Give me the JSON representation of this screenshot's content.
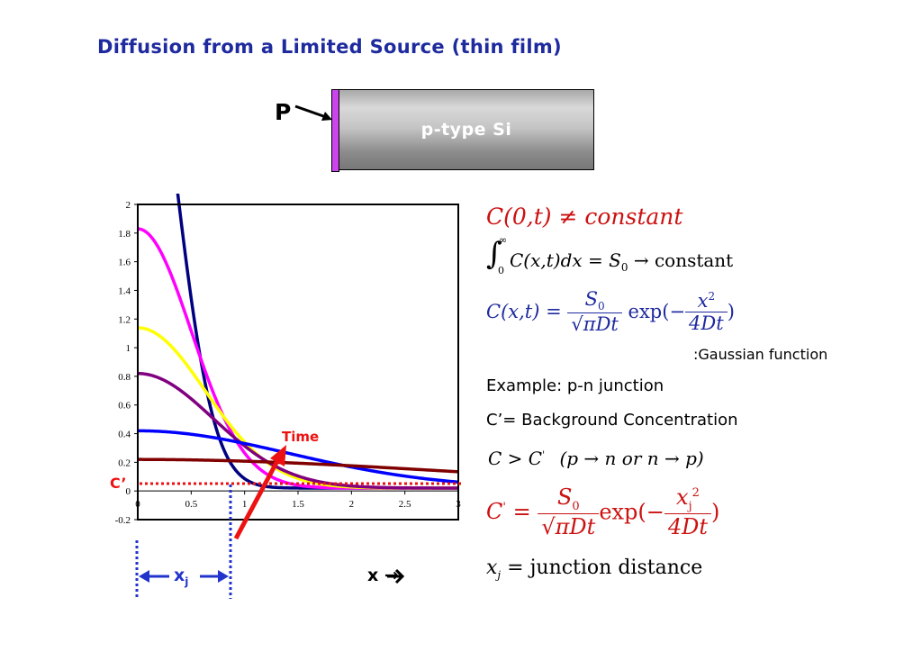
{
  "title": "Diffusion from a Limited Source (thin film)",
  "schematic": {
    "dopant_label": "P",
    "substrate_label": "p-type Si",
    "film_color": "#cc44ee"
  },
  "equations": {
    "eq1": "C(0,t) ≠ constant",
    "eq2_lower": "0",
    "eq2_upper": "∞",
    "eq2_body": "C(x,t)dx = S",
    "eq2_sub": "0",
    "eq2_tail": " → constant",
    "eq3_lhs": "C(x,t) =",
    "eq3_num": "S",
    "eq3_num_sub": "0",
    "eq3_den": "πDt",
    "eq3_exp": "exp(−",
    "eq3_exp_num": "x",
    "eq3_exp_num_sup": "2",
    "eq3_exp_den": "4Dt",
    "eq3_close": ")",
    "eq3_note": ":Gaussian function",
    "example": "Example: p-n junction",
    "cprime_def": "C’= Background Concentration",
    "ineq": "C > C",
    "ineq_prime": "'",
    "ineq_paren": "(p → n  or n → p)",
    "eq4_lhs_prime": "'",
    "eq4_lhs": "C",
    "eq4_eq": "=",
    "eq4_num": "S",
    "eq4_num_sub": "0",
    "eq4_den": "πDt",
    "eq4_exp": "exp(−",
    "eq4_exp_num": "x",
    "eq4_exp_num_sub": "j",
    "eq4_exp_num_sup": "2",
    "eq4_exp_den": "4Dt",
    "eq4_close": ")",
    "eq5_x": "x",
    "eq5_sub": "j",
    "eq5_rest": " = junction distance"
  },
  "annotations": {
    "time_label": "Time",
    "cprime_label": "C’",
    "xj_label": "x",
    "xj_sub": "j",
    "x_axis_label": "x →"
  },
  "chart_data": {
    "type": "line",
    "xlim": [
      0,
      3
    ],
    "ylim": [
      -0.2,
      2
    ],
    "x_ticks": [
      "0",
      "0.5",
      "1",
      "1.5",
      "2",
      "2.5",
      "3"
    ],
    "y_ticks": [
      "-0.2",
      "0",
      "0.2",
      "0.4",
      "0.6",
      "0.8",
      "1",
      "1.2",
      "1.4",
      "1.6",
      "1.8",
      "2"
    ],
    "background_level": 0.02,
    "series": [
      {
        "color": "#000080",
        "S0": 1.595,
        "Dt": 0.0625
      },
      {
        "color": "#ff00ff",
        "S0": 1.134,
        "Dt": 0.125
      },
      {
        "color": "#ffff00",
        "S0": 0.887,
        "Dt": 0.2
      },
      {
        "color": "#800080",
        "S0": 0.709,
        "Dt": 0.25
      },
      {
        "color": "#0000ff",
        "S0": 0.709,
        "Dt": 1.0
      },
      {
        "color": "#800000",
        "S0": 0.709,
        "Dt": 4.0
      }
    ]
  }
}
